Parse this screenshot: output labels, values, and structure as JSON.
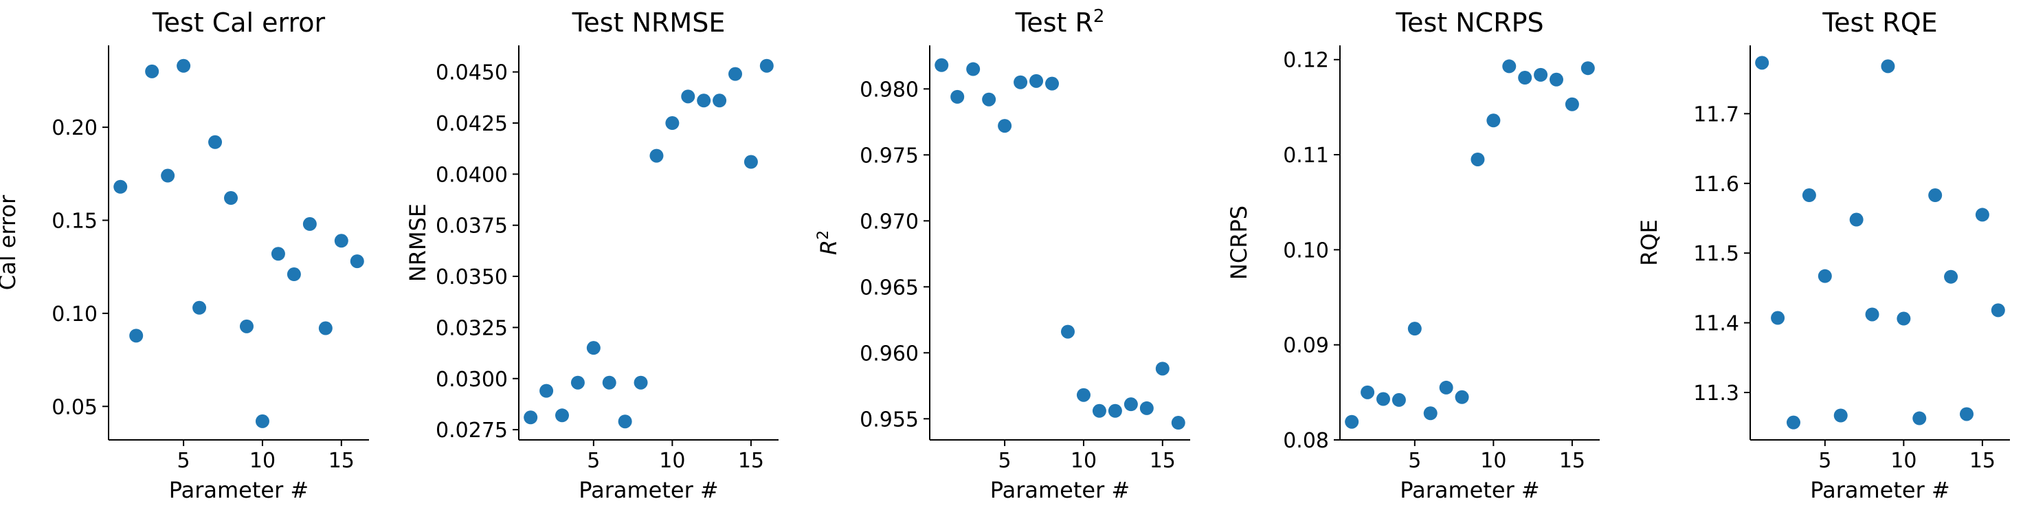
{
  "marker_color": "#1f77b4",
  "chart_data": [
    {
      "type": "scatter",
      "title": "Test Cal error",
      "xlabel": "Parameter #",
      "ylabel": "Cal error",
      "xlim": [
        0.25,
        16.75
      ],
      "ylim": [
        0.032,
        0.244
      ],
      "xticks": [
        5,
        10,
        15
      ],
      "yticks": [
        0.05,
        0.1,
        0.15,
        0.2
      ],
      "ytick_labels": [
        "0.05",
        "0.10",
        "0.15",
        "0.20"
      ],
      "grid": false,
      "x": [
        1,
        2,
        3,
        4,
        5,
        6,
        7,
        8,
        9,
        10,
        11,
        12,
        13,
        14,
        15,
        16
      ],
      "y": [
        0.168,
        0.088,
        0.23,
        0.174,
        0.233,
        0.103,
        0.192,
        0.162,
        0.093,
        0.042,
        0.132,
        0.121,
        0.148,
        0.092,
        0.139,
        0.128
      ]
    },
    {
      "type": "scatter",
      "title": "Test NRMSE",
      "xlabel": "Parameter #",
      "ylabel": "NRMSE",
      "xlim": [
        0.25,
        16.75
      ],
      "ylim": [
        0.027,
        0.0463
      ],
      "xticks": [
        5,
        10,
        15
      ],
      "yticks": [
        0.0275,
        0.03,
        0.0325,
        0.035,
        0.0375,
        0.04,
        0.0425,
        0.045
      ],
      "ytick_labels": [
        "0.0275",
        "0.0300",
        "0.0325",
        "0.0350",
        "0.0375",
        "0.0400",
        "0.0425",
        "0.0450"
      ],
      "grid": false,
      "x": [
        1,
        2,
        3,
        4,
        5,
        6,
        7,
        8,
        9,
        10,
        11,
        12,
        13,
        14,
        15,
        16
      ],
      "y": [
        0.0281,
        0.0294,
        0.0282,
        0.0298,
        0.0315,
        0.0298,
        0.0279,
        0.0298,
        0.0409,
        0.0425,
        0.0438,
        0.0436,
        0.0436,
        0.0449,
        0.0406,
        0.0453
      ]
    },
    {
      "type": "scatter",
      "title": "Test R",
      "title_superscript": "2",
      "xlabel": "Parameter #",
      "ylabel": "R",
      "ylabel_superscript": "2",
      "xlim": [
        0.25,
        16.75
      ],
      "ylim": [
        0.9534,
        0.9833
      ],
      "xticks": [
        5,
        10,
        15
      ],
      "yticks": [
        0.955,
        0.96,
        0.965,
        0.97,
        0.975,
        0.98
      ],
      "ytick_labels": [
        "0.955",
        "0.960",
        "0.965",
        "0.970",
        "0.975",
        "0.980"
      ],
      "grid": false,
      "x": [
        1,
        2,
        3,
        4,
        5,
        6,
        7,
        8,
        9,
        10,
        11,
        12,
        13,
        14,
        15,
        16
      ],
      "y": [
        0.9818,
        0.9794,
        0.9815,
        0.9792,
        0.9772,
        0.9805,
        0.9806,
        0.9804,
        0.9616,
        0.9568,
        0.9556,
        0.9556,
        0.9561,
        0.9558,
        0.9588,
        0.9547
      ]
    },
    {
      "type": "scatter",
      "title": "Test NCRPS",
      "xlabel": "Parameter #",
      "ylabel": "NCRPS",
      "xlim": [
        0.25,
        16.75
      ],
      "ylim": [
        0.08,
        0.1215
      ],
      "xticks": [
        5,
        10,
        15
      ],
      "yticks": [
        0.08,
        0.09,
        0.1,
        0.11,
        0.12
      ],
      "ytick_labels": [
        "0.08",
        "0.09",
        "0.10",
        "0.11",
        "0.12"
      ],
      "grid": false,
      "x": [
        1,
        2,
        3,
        4,
        5,
        6,
        7,
        8,
        9,
        10,
        11,
        12,
        13,
        14,
        15,
        16
      ],
      "y": [
        0.0819,
        0.085,
        0.0843,
        0.0842,
        0.0917,
        0.0828,
        0.0855,
        0.0845,
        0.1095,
        0.1136,
        0.1193,
        0.1181,
        0.1184,
        0.1179,
        0.1153,
        0.1191
      ]
    },
    {
      "type": "scatter",
      "title": "Test RQE",
      "xlabel": "Parameter #",
      "ylabel": "RQE",
      "xlim": [
        0.25,
        16.75
      ],
      "ylim": [
        11.232,
        11.798
      ],
      "xticks": [
        5,
        10,
        15
      ],
      "yticks": [
        11.3,
        11.4,
        11.5,
        11.6,
        11.7
      ],
      "ytick_labels": [
        "11.3",
        "11.4",
        "11.5",
        "11.6",
        "11.7"
      ],
      "grid": false,
      "x": [
        1,
        2,
        3,
        4,
        5,
        6,
        7,
        8,
        9,
        10,
        11,
        12,
        13,
        14,
        15,
        16
      ],
      "y": [
        11.773,
        11.407,
        11.257,
        11.583,
        11.467,
        11.267,
        11.548,
        11.412,
        11.768,
        11.406,
        11.263,
        11.583,
        11.466,
        11.269,
        11.555,
        11.418
      ]
    }
  ]
}
